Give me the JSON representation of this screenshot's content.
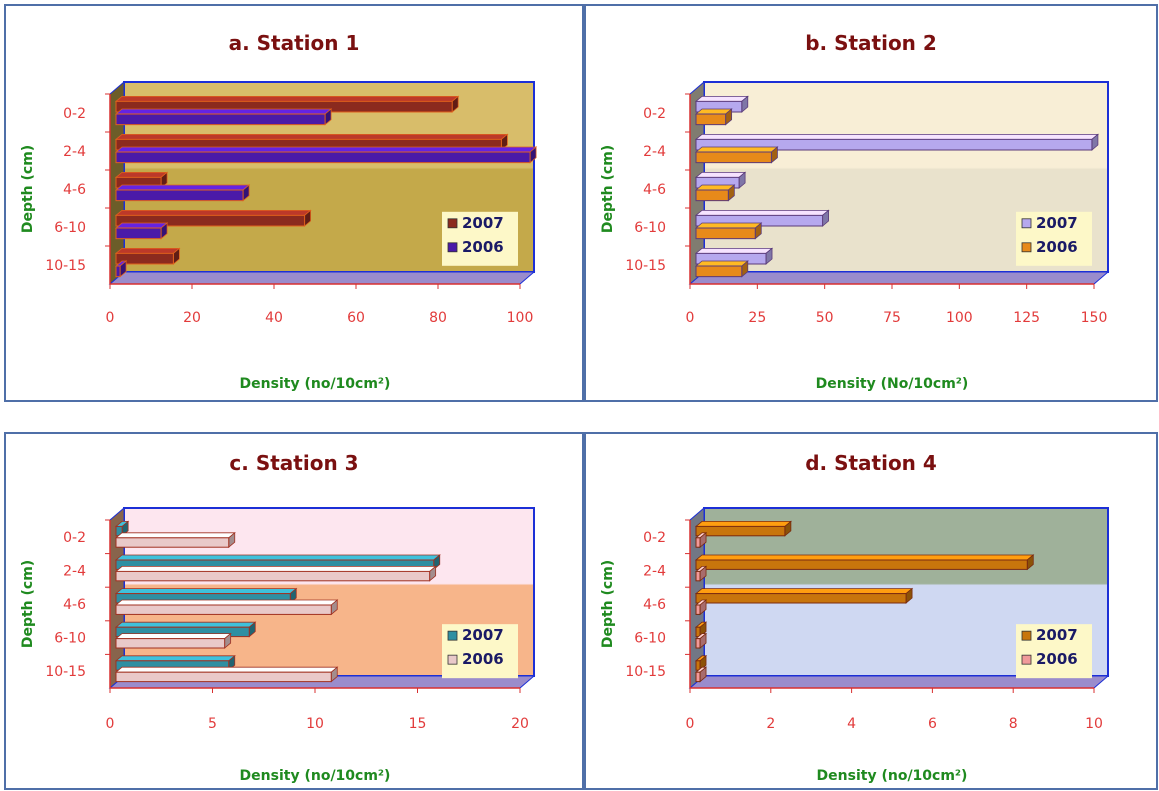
{
  "chart_data": [
    {
      "type": "bar",
      "title": "a. Station 1",
      "ylabel": "Depth (cm)",
      "xlabel": "Density (no/10cm²)",
      "categories": [
        "0-2",
        "2-4",
        "4-6",
        "6-10",
        "10-15"
      ],
      "xlim": [
        0,
        100
      ],
      "xticks": [
        "0",
        "20",
        "40",
        "60",
        "80",
        "100"
      ],
      "series": [
        {
          "name": "2007",
          "values": [
            82,
            94,
            11,
            46,
            14
          ]
        },
        {
          "name": "2006",
          "values": [
            51,
            101,
            31,
            11,
            1
          ]
        }
      ],
      "legend": "right",
      "colors": {
        "bg_top": "#d8bd6a",
        "bg_bottom": "#c4a94a",
        "s1": "#8b2a1e",
        "s2": "#4a1aa8",
        "edge": "#e0601c"
      }
    },
    {
      "type": "bar",
      "title": "b. Station 2",
      "ylabel": "Depth (cm)",
      "xlabel": "Density (No/10cm²)",
      "categories": [
        "0-2",
        "2-4",
        "4-6",
        "6-10",
        "10-15"
      ],
      "xlim": [
        0,
        150
      ],
      "xticks": [
        "0",
        "25",
        "50",
        "75",
        "100",
        "125",
        "150"
      ],
      "series": [
        {
          "name": "2007",
          "values": [
            17,
            147,
            16,
            47,
            26
          ]
        },
        {
          "name": "2006",
          "values": [
            11,
            28,
            12,
            22,
            17
          ]
        }
      ],
      "legend": "right",
      "colors": {
        "bg_top": "#f8eed6",
        "bg_bottom": "#e9e2cc",
        "s1": "#b6a8ee",
        "s2": "#e78a1a",
        "edge": "#5a3a7a"
      }
    },
    {
      "type": "bar",
      "title": "c. Station 3",
      "ylabel": "Depth (cm)",
      "xlabel": "Density (no/10cm²)",
      "categories": [
        "0-2",
        "2-4",
        "4-6",
        "6-10",
        "10-15"
      ],
      "xlim": [
        0,
        20
      ],
      "xticks": [
        "0",
        "5",
        "10",
        "15",
        "20"
      ],
      "series": [
        {
          "name": "2007",
          "values": [
            0.3,
            15.5,
            8.5,
            6.5,
            5.5
          ]
        },
        {
          "name": "2006",
          "values": [
            5.5,
            15.3,
            10.5,
            5.3,
            10.5
          ]
        }
      ],
      "legend": "right",
      "colors": {
        "bg_top": "#fde6ef",
        "bg_bottom": "#f7b58a",
        "s1": "#2f8fa2",
        "s2": "#e9c9c9",
        "edge": "#a03020"
      }
    },
    {
      "type": "bar",
      "title": "d. Station 4",
      "ylabel": "Depth (cm)",
      "xlabel": "Density (no/10cm²)",
      "categories": [
        "0-2",
        "2-4",
        "4-6",
        "6-10",
        "10-15"
      ],
      "xlim": [
        0,
        10
      ],
      "xticks": [
        "0",
        "2",
        "4",
        "6",
        "8",
        "10"
      ],
      "series": [
        {
          "name": "2007",
          "values": [
            2.2,
            8.2,
            5.2,
            0.1,
            0.1
          ]
        },
        {
          "name": "2006",
          "values": [
            0.1,
            0.1,
            0.1,
            0.1,
            0.1
          ]
        }
      ],
      "legend": "right",
      "colors": {
        "bg_top": "#9fb19a",
        "bg_bottom": "#cfd8f2",
        "s1": "#c8750c",
        "s2": "#f09a9a",
        "edge": "#7a2a10"
      }
    }
  ]
}
